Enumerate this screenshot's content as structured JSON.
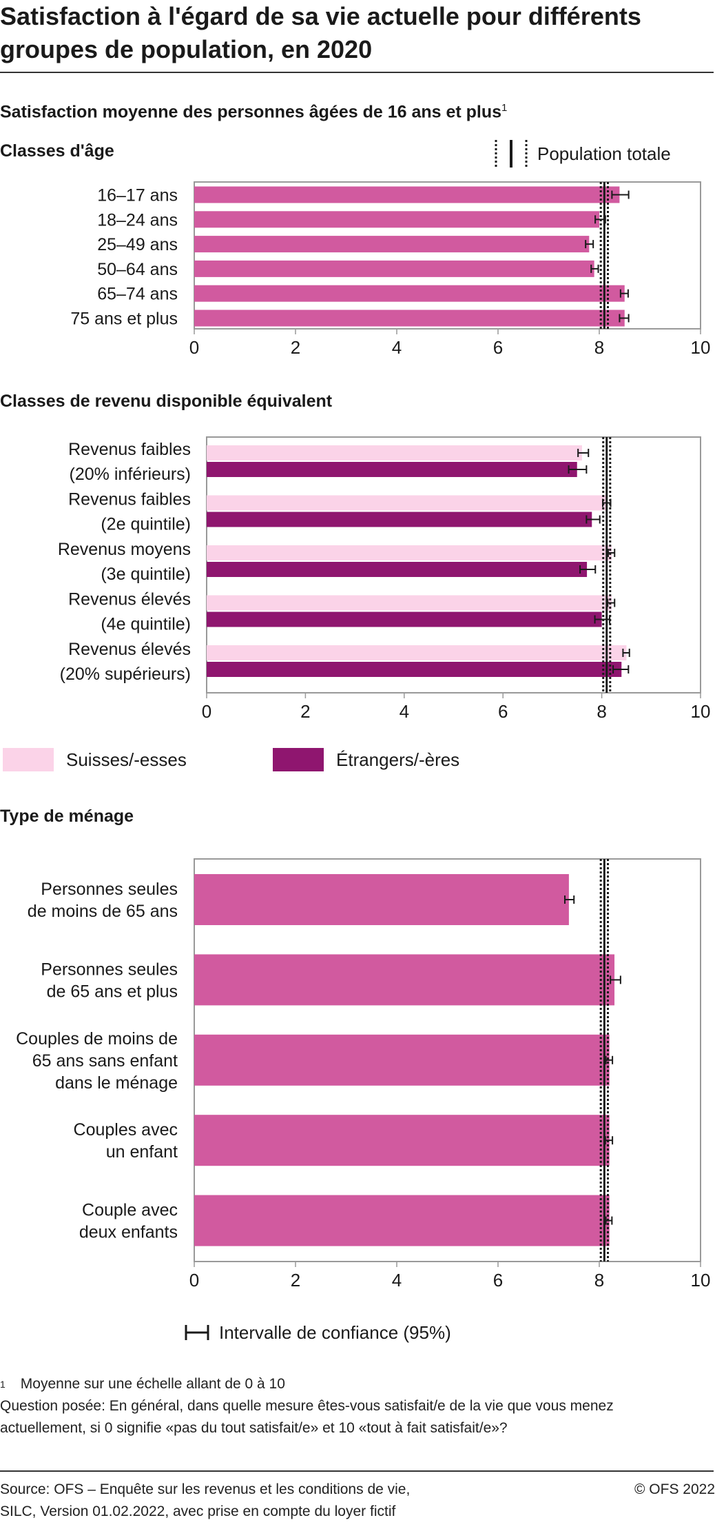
{
  "title": "Satisfaction à l'égard de sa vie actuelle pour différents groupes de population, en 2020",
  "subtitle": "Satisfaction moyenne des personnes âgées de 16 ans et plus",
  "subtitle_footnote": "1",
  "legend": {
    "population_totale": "Population totale",
    "suisses": "Suisses/-esses",
    "etrangers": "Étrangers/-ères",
    "ci": "Intervalle de confiance (95%)"
  },
  "colors": {
    "age_bar": "#d15a9f",
    "suisses": "#fbd3e8",
    "etrangers": "#8f166f",
    "frame": "#999999",
    "ci": "#1a1a1a"
  },
  "chart_data": [
    {
      "type": "bar",
      "orientation": "horizontal",
      "title": "Classes d'âge",
      "categories": [
        "16–17 ans",
        "18–24 ans",
        "25–49 ans",
        "50–64 ans",
        "65–74 ans",
        "75 ans et plus"
      ],
      "series": [
        {
          "values": [
            8.4,
            8.0,
            7.8,
            7.9,
            8.5,
            8.5
          ],
          "ci_low": [
            8.25,
            7.92,
            7.73,
            7.84,
            8.42,
            8.4
          ],
          "ci_high": [
            8.58,
            8.12,
            7.88,
            7.98,
            8.57,
            8.58
          ]
        }
      ],
      "population_totale": 8.1,
      "population_totale_ci": [
        8.03,
        8.17
      ],
      "xlim": [
        0,
        10
      ],
      "xticks": [
        "0",
        "2",
        "4",
        "6",
        "8",
        "10"
      ],
      "grid": false
    },
    {
      "type": "bar",
      "orientation": "horizontal",
      "title": "Classes de revenu disponible équivalent",
      "categories": [
        [
          "Revenus faibles",
          "(20% inférieurs)"
        ],
        [
          "Revenus faibles",
          "(2e quintile)"
        ],
        [
          "Revenus moyens",
          "(3e quintile)"
        ],
        [
          "Revenus élevés",
          "(4e quintile)"
        ],
        [
          "Revenus élevés",
          "(20% supérieurs)"
        ]
      ],
      "series": [
        {
          "name": "Suisses/-esses",
          "values": [
            7.6,
            8.1,
            8.2,
            8.2,
            8.5
          ],
          "ci_low": [
            7.52,
            8.02,
            8.13,
            8.12,
            8.43
          ],
          "ci_high": [
            7.73,
            8.18,
            8.26,
            8.26,
            8.56
          ]
        },
        {
          "name": "Étrangers/-ères",
          "values": [
            7.5,
            7.8,
            7.7,
            8.0,
            8.4
          ],
          "ci_low": [
            7.33,
            7.69,
            7.56,
            7.86,
            8.23
          ],
          "ci_high": [
            7.69,
            7.96,
            7.87,
            8.16,
            8.54
          ]
        }
      ],
      "population_totale": 8.1,
      "population_totale_ci": [
        8.03,
        8.17
      ],
      "xlim": [
        0,
        10
      ],
      "xticks": [
        "0",
        "2",
        "4",
        "6",
        "8",
        "10"
      ],
      "grid": false
    },
    {
      "type": "bar",
      "orientation": "horizontal",
      "title": "Type de ménage",
      "categories": [
        [
          "Personnes seules",
          "de moins de 65 ans"
        ],
        [
          "Personnes seules",
          "de 65 ans et plus"
        ],
        [
          "Couples de moins de",
          "65 ans sans enfant",
          "dans le ménage"
        ],
        [
          "Couples avec",
          "un enfant"
        ],
        [
          "Couple avec",
          "deux enfants"
        ]
      ],
      "series": [
        {
          "values": [
            7.4,
            8.3,
            8.2,
            8.2,
            8.2
          ],
          "ci_low": [
            7.32,
            8.22,
            8.13,
            8.12,
            8.13
          ],
          "ci_high": [
            7.5,
            8.42,
            8.26,
            8.26,
            8.25
          ]
        }
      ],
      "population_totale": 8.1,
      "population_totale_ci": [
        8.03,
        8.17
      ],
      "xlim": [
        0,
        10
      ],
      "xticks": [
        "0",
        "2",
        "4",
        "6",
        "8",
        "10"
      ],
      "grid": false
    }
  ],
  "notes": {
    "footnote_marker": "1",
    "footnote_text": "Moyenne sur une échelle allant de 0 à 10",
    "question_line1": "Question posée: En général, dans quelle mesure êtes-vous satisfait/e de la vie que vous menez",
    "question_line2": "actuellement, si 0 signifie «pas du tout satisfait/e» et 10 «tout à fait satisfait/e»?"
  },
  "source": {
    "line1": "Source: OFS – Enquête sur les revenus et les conditions de vie,",
    "line2": "SILC, Version 01.02.2022, avec prise en compte du loyer fictif"
  },
  "copyright": "© OFS 2022"
}
